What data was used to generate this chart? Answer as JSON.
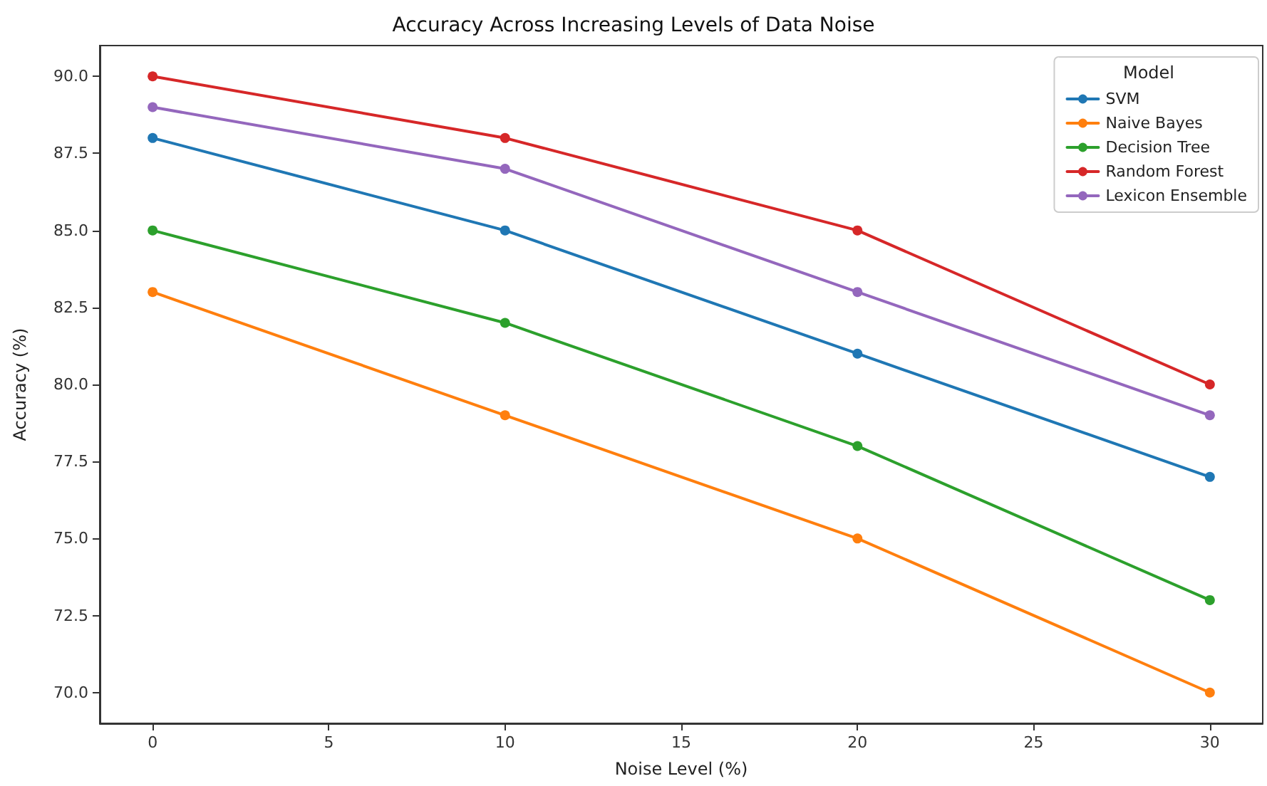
{
  "chart_data": {
    "type": "line",
    "title": "Accuracy Across Increasing Levels of Data Noise",
    "xlabel": "Noise Level (%)",
    "ylabel": "Accuracy (%)",
    "legend_title": "Model",
    "x": [
      0,
      10,
      20,
      30
    ],
    "series": [
      {
        "name": "SVM",
        "color": "#1f77b4",
        "values": [
          88,
          85,
          81,
          77
        ]
      },
      {
        "name": "Naive Bayes",
        "color": "#ff7f0e",
        "values": [
          83,
          79,
          75,
          70
        ]
      },
      {
        "name": "Decision Tree",
        "color": "#2ca02c",
        "values": [
          85,
          82,
          78,
          73
        ]
      },
      {
        "name": "Random Forest",
        "color": "#d62728",
        "values": [
          90,
          88,
          85,
          80
        ]
      },
      {
        "name": "Lexicon Ensemble",
        "color": "#9467bd",
        "values": [
          89,
          87,
          83,
          79
        ]
      }
    ],
    "xlim": [
      -1.5,
      31.5
    ],
    "xticks": [
      0,
      5,
      10,
      15,
      20,
      25,
      30
    ],
    "ylim": [
      69,
      91
    ],
    "yticks": [
      {
        "value": 70,
        "label": "70.0"
      },
      {
        "value": 72.5,
        "label": "72.5"
      },
      {
        "value": 75,
        "label": "75.0"
      },
      {
        "value": 77.5,
        "label": "77.5"
      },
      {
        "value": 80,
        "label": "80.0"
      },
      {
        "value": 82.5,
        "label": "82.5"
      },
      {
        "value": 85,
        "label": "85.0"
      },
      {
        "value": 87.5,
        "label": "87.5"
      },
      {
        "value": 90,
        "label": "90.0"
      }
    ],
    "grid": false,
    "legend": "top right",
    "marker": "circle",
    "line_style": "solid"
  }
}
